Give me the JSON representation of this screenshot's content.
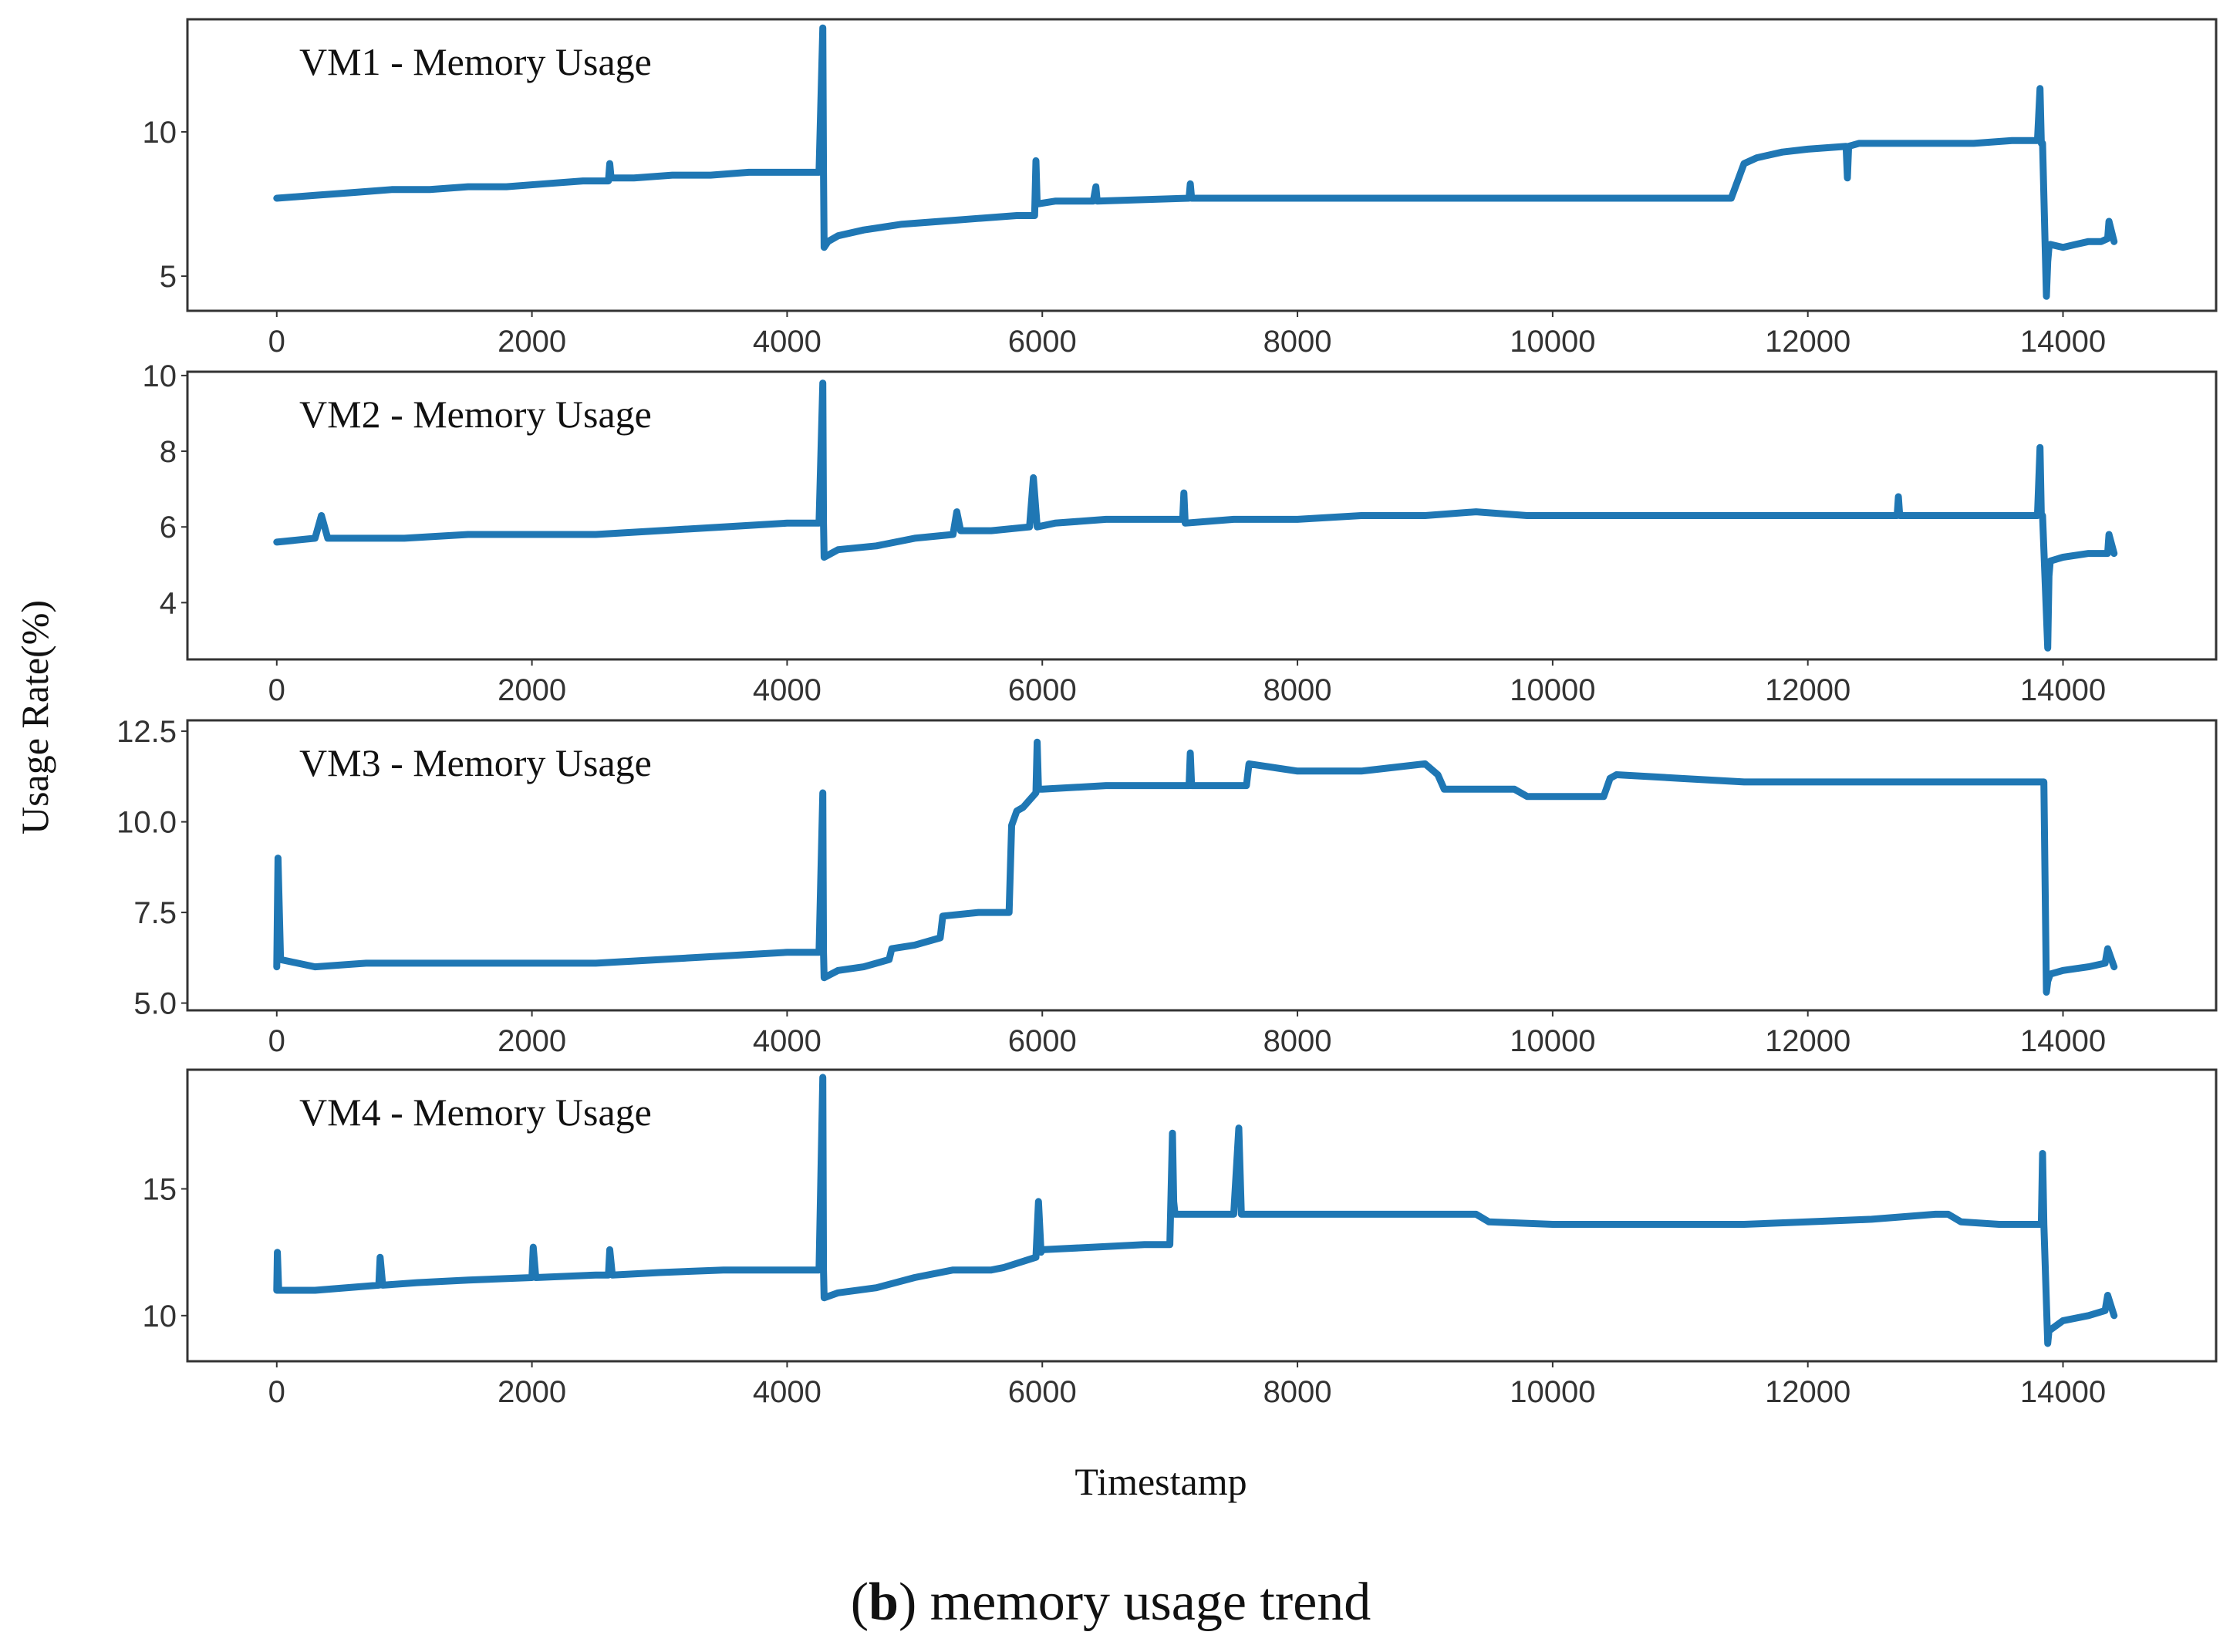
{
  "figure": {
    "ylabel": "Usage Rate(%)",
    "xlabel": "Timestamp",
    "caption_letter": "b",
    "caption_open": "(",
    "caption_rest": ") memory usage trend"
  },
  "colors": {
    "series": "#1f77b4",
    "frame": "#333333"
  },
  "chart_data": [
    {
      "type": "line",
      "title": "VM1  - Memory Usage",
      "xlabel": "",
      "ylabel": "",
      "xlim": [
        -700,
        15200
      ],
      "ylim": [
        3.8,
        13.9
      ],
      "xticks": [
        0,
        2000,
        4000,
        6000,
        8000,
        10000,
        12000,
        14000
      ],
      "yticks": [
        5,
        10
      ],
      "ytick_labels": [
        "5",
        "10"
      ],
      "series": [
        {
          "name": "VM1",
          "x": [
            0,
            300,
            600,
            900,
            1200,
            1500,
            1800,
            2100,
            2400,
            2600,
            2610,
            2620,
            2800,
            3100,
            3400,
            3700,
            4000,
            4250,
            4280,
            4285,
            4290,
            4320,
            4400,
            4600,
            4900,
            5200,
            5500,
            5800,
            5940,
            5950,
            5960,
            6100,
            6400,
            6420,
            6430,
            7150,
            7160,
            7170,
            7500,
            8000,
            8500,
            9000,
            9500,
            10000,
            10500,
            11000,
            11400,
            11500,
            11600,
            11800,
            12000,
            12300,
            12310,
            12320,
            12400,
            12700,
            13000,
            13300,
            13600,
            13800,
            13820,
            13830,
            13840,
            13870,
            13880,
            13890,
            13900,
            14000,
            14100,
            14200,
            14300,
            14350,
            14360,
            14400
          ],
          "values": [
            7.7,
            7.8,
            7.9,
            8.0,
            8.0,
            8.1,
            8.1,
            8.2,
            8.3,
            8.3,
            8.9,
            8.4,
            8.4,
            8.5,
            8.5,
            8.6,
            8.6,
            8.6,
            13.6,
            8.6,
            6.0,
            6.2,
            6.4,
            6.6,
            6.8,
            6.9,
            7.0,
            7.1,
            7.1,
            9.0,
            7.5,
            7.6,
            7.6,
            8.1,
            7.6,
            7.7,
            8.2,
            7.7,
            7.7,
            7.7,
            7.7,
            7.7,
            7.7,
            7.7,
            7.7,
            7.7,
            7.7,
            8.9,
            9.1,
            9.3,
            9.4,
            9.5,
            8.4,
            9.5,
            9.6,
            9.6,
            9.6,
            9.6,
            9.7,
            9.7,
            11.5,
            9.6,
            9.6,
            4.3,
            5.5,
            6.0,
            6.1,
            6.0,
            6.1,
            6.2,
            6.2,
            6.3,
            6.9,
            6.2
          ]
        }
      ]
    },
    {
      "type": "line",
      "title": "VM2  - Memory Usage",
      "xlabel": "",
      "ylabel": "",
      "xlim": [
        -700,
        15200
      ],
      "ylim": [
        2.5,
        10.1
      ],
      "xticks": [
        0,
        2000,
        4000,
        6000,
        8000,
        10000,
        12000,
        14000
      ],
      "yticks": [
        4,
        6,
        8,
        10
      ],
      "ytick_labels": [
        "4",
        "6",
        "8",
        "10"
      ],
      "series": [
        {
          "name": "VM2",
          "x": [
            0,
            300,
            350,
            400,
            700,
            1000,
            1500,
            2000,
            2500,
            3000,
            3500,
            4000,
            4250,
            4280,
            4285,
            4290,
            4400,
            4700,
            5000,
            5300,
            5330,
            5360,
            5600,
            5900,
            5930,
            5960,
            6100,
            6500,
            6900,
            7100,
            7110,
            7120,
            7500,
            8000,
            8500,
            9000,
            9400,
            9800,
            10200,
            10600,
            11000,
            11500,
            12000,
            12400,
            12700,
            12710,
            12720,
            13000,
            13500,
            13800,
            13820,
            13830,
            13840,
            13880,
            13890,
            13900,
            14000,
            14200,
            14350,
            14360,
            14400
          ],
          "values": [
            5.6,
            5.7,
            6.3,
            5.7,
            5.7,
            5.7,
            5.8,
            5.8,
            5.8,
            5.9,
            6.0,
            6.1,
            6.1,
            9.8,
            6.1,
            5.2,
            5.4,
            5.5,
            5.7,
            5.8,
            6.4,
            5.9,
            5.9,
            6.0,
            7.3,
            6.0,
            6.1,
            6.2,
            6.2,
            6.2,
            6.9,
            6.1,
            6.2,
            6.2,
            6.3,
            6.3,
            6.4,
            6.3,
            6.3,
            6.3,
            6.3,
            6.3,
            6.3,
            6.3,
            6.3,
            6.8,
            6.3,
            6.3,
            6.3,
            6.3,
            8.1,
            6.3,
            6.3,
            2.8,
            4.7,
            5.1,
            5.2,
            5.3,
            5.3,
            5.8,
            5.3
          ]
        }
      ]
    },
    {
      "type": "line",
      "title": "VM3  - Memory Usage",
      "xlabel": "",
      "ylabel": "",
      "xlim": [
        -700,
        15200
      ],
      "ylim": [
        4.8,
        12.8
      ],
      "xticks": [
        0,
        2000,
        4000,
        6000,
        8000,
        10000,
        12000,
        14000
      ],
      "yticks": [
        5.0,
        7.5,
        10.0,
        12.5
      ],
      "ytick_labels": [
        "5.0",
        "7.5",
        "10.0",
        "12.5"
      ],
      "series": [
        {
          "name": "VM3",
          "x": [
            0,
            10,
            30,
            300,
            700,
            1000,
            1500,
            2000,
            2500,
            3000,
            3500,
            4000,
            4250,
            4280,
            4285,
            4290,
            4400,
            4600,
            4800,
            4820,
            5000,
            5200,
            5220,
            5500,
            5740,
            5760,
            5800,
            5850,
            5900,
            5950,
            5960,
            5970,
            6000,
            6500,
            7000,
            7150,
            7160,
            7170,
            7500,
            7600,
            7620,
            8000,
            8500,
            9000,
            9100,
            9150,
            9300,
            9700,
            9800,
            10000,
            10400,
            10450,
            10500,
            11000,
            11500,
            12000,
            12500,
            13000,
            13500,
            13850,
            13870,
            13880,
            13900,
            14000,
            14200,
            14330,
            14350,
            14400
          ],
          "values": [
            6.0,
            9.0,
            6.2,
            6.0,
            6.1,
            6.1,
            6.1,
            6.1,
            6.1,
            6.2,
            6.3,
            6.4,
            6.4,
            10.8,
            6.4,
            5.7,
            5.9,
            6.0,
            6.2,
            6.5,
            6.6,
            6.8,
            7.4,
            7.5,
            7.5,
            9.9,
            10.3,
            10.4,
            10.6,
            10.8,
            12.2,
            10.9,
            10.9,
            11.0,
            11.0,
            11.0,
            11.9,
            11.0,
            11.0,
            11.0,
            11.6,
            11.4,
            11.4,
            11.6,
            11.3,
            10.9,
            10.9,
            10.9,
            10.7,
            10.7,
            10.7,
            11.2,
            11.3,
            11.2,
            11.1,
            11.1,
            11.1,
            11.1,
            11.1,
            11.1,
            5.3,
            5.6,
            5.8,
            5.9,
            6.0,
            6.1,
            6.5,
            6.0
          ]
        }
      ]
    },
    {
      "type": "line",
      "title": "VM4  - Memory Usage",
      "xlabel": "",
      "ylabel": "",
      "xlim": [
        -700,
        15200
      ],
      "ylim": [
        8.2,
        19.7
      ],
      "xticks": [
        0,
        2000,
        4000,
        6000,
        8000,
        10000,
        12000,
        14000
      ],
      "yticks": [
        10,
        15
      ],
      "ytick_labels": [
        "10",
        "15"
      ],
      "series": [
        {
          "name": "VM4",
          "x": [
            0,
            5,
            15,
            300,
            800,
            810,
            830,
            1100,
            1500,
            2000,
            2010,
            2030,
            2500,
            2600,
            2610,
            2630,
            3000,
            3500,
            4000,
            4250,
            4280,
            4285,
            4290,
            4400,
            4700,
            5000,
            5300,
            5600,
            5700,
            5950,
            5970,
            5990,
            6000,
            6400,
            6800,
            7000,
            7020,
            7030,
            7040,
            7050,
            7300,
            7500,
            7540,
            7560,
            7580,
            8000,
            8500,
            9000,
            9400,
            9500,
            10000,
            10500,
            11000,
            11500,
            12000,
            12500,
            13000,
            13100,
            13200,
            13500,
            13830,
            13840,
            13850,
            13880,
            13890,
            14000,
            14200,
            14330,
            14350,
            14400
          ],
          "values": [
            11.0,
            12.5,
            11.0,
            11.0,
            11.2,
            12.3,
            11.2,
            11.3,
            11.4,
            11.5,
            12.7,
            11.5,
            11.6,
            11.6,
            12.6,
            11.6,
            11.7,
            11.8,
            11.8,
            11.8,
            19.4,
            11.8,
            10.7,
            10.9,
            11.1,
            11.5,
            11.8,
            11.8,
            11.9,
            12.3,
            14.5,
            12.5,
            12.6,
            12.7,
            12.8,
            12.8,
            17.2,
            14.5,
            14.0,
            14.0,
            14.0,
            14.0,
            17.4,
            14.0,
            14.0,
            14.0,
            14.0,
            14.0,
            14.0,
            13.7,
            13.6,
            13.6,
            13.6,
            13.6,
            13.7,
            13.8,
            14.0,
            14.0,
            13.7,
            13.6,
            13.6,
            16.4,
            13.6,
            8.9,
            9.4,
            9.8,
            10.0,
            10.2,
            10.8,
            10.0
          ]
        }
      ]
    }
  ]
}
